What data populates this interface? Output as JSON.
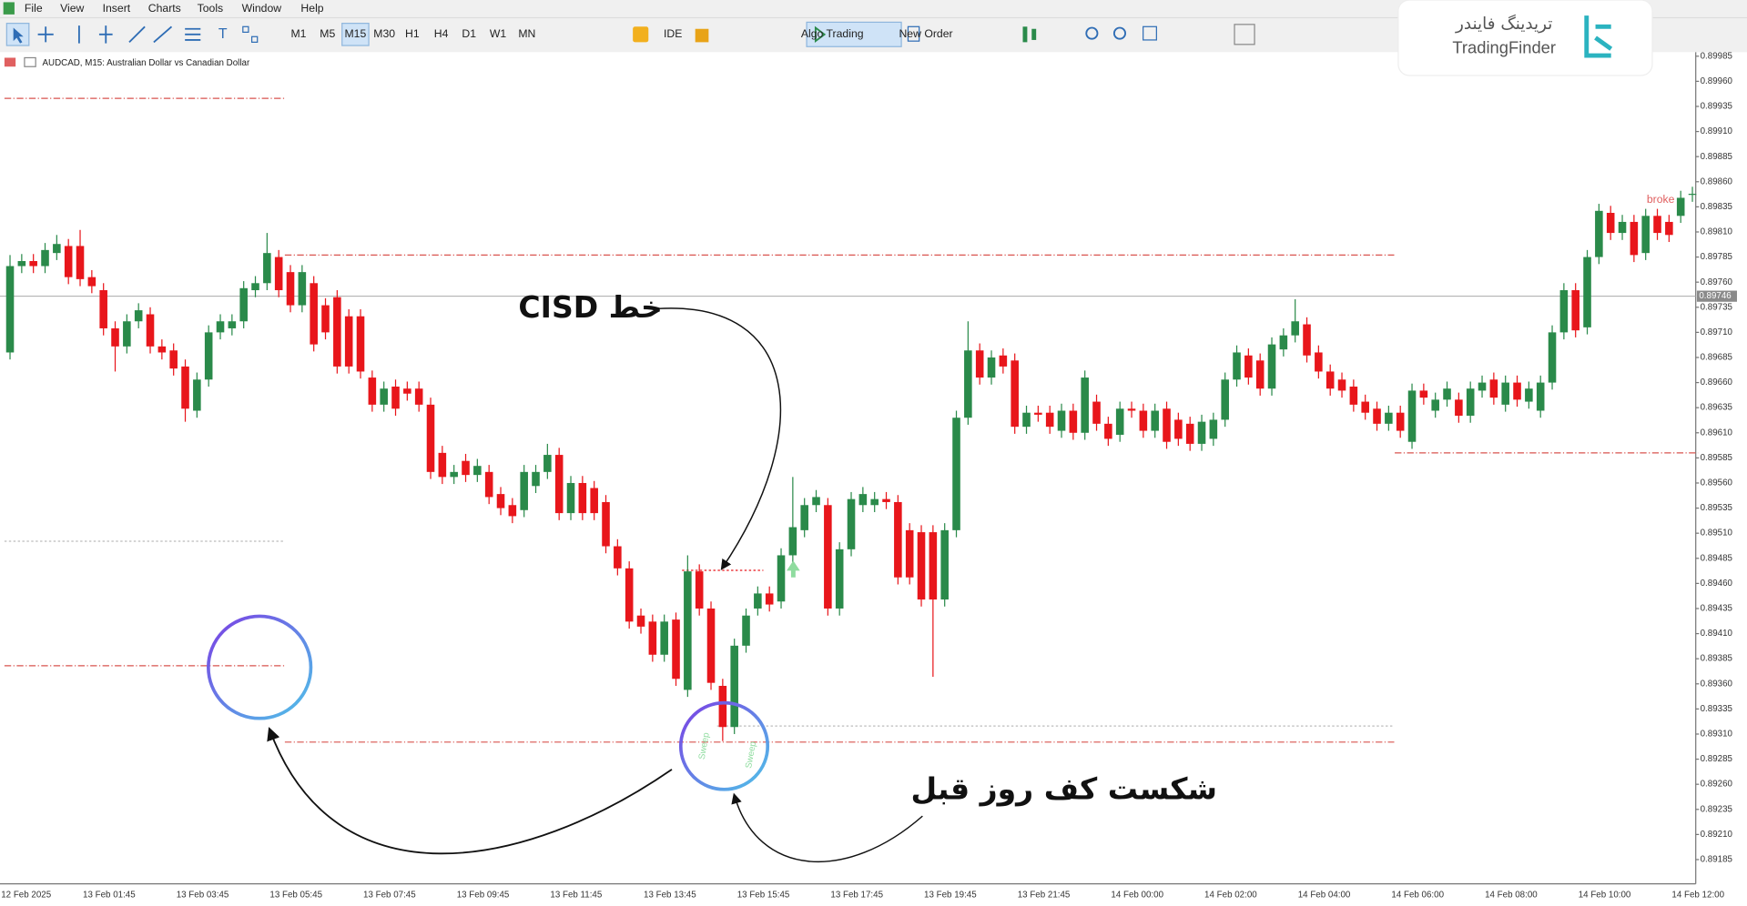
{
  "ui": {
    "menu": [
      "File",
      "View",
      "Insert",
      "Charts",
      "Tools",
      "Window",
      "Help"
    ],
    "timeframes": [
      "M1",
      "M5",
      "M15",
      "M30",
      "H1",
      "H4",
      "D1",
      "W1",
      "MN"
    ],
    "buttons": [
      "IDE",
      "Algo Trading",
      "New Order"
    ],
    "chart_header": "AUDCAD, M15:  Australian Dollar vs Canadian Dollar",
    "logo_fa": "تریدینگ فایندر",
    "logo_en": "TradingFinder"
  },
  "chart_data": {
    "type": "candlestick",
    "up_color": "#2a8a4a",
    "down_color": "#e8161b",
    "categories": [
      "12 Feb 2025",
      null,
      null,
      null,
      null,
      null,
      null,
      "13 Feb 01:45",
      null,
      null,
      null,
      null,
      null,
      null,
      null,
      "13 Feb 03:45",
      null,
      null,
      null,
      null,
      null,
      null,
      null,
      "13 Feb 05:45",
      null,
      null,
      null,
      null,
      null,
      null,
      null,
      "13 Feb 07:45",
      null,
      null,
      null,
      null,
      null,
      null,
      null,
      "13 Feb 09:45",
      null,
      null,
      null,
      null,
      null,
      null,
      null,
      "13 Feb 11:45",
      null,
      null,
      null,
      null,
      null,
      null,
      null,
      "13 Feb 13:45",
      null,
      null,
      null,
      null,
      null,
      null,
      null,
      "13 Feb 15:45",
      null,
      null,
      null,
      null,
      null,
      null,
      null,
      "13 Feb 17:45",
      null,
      null,
      null,
      null,
      null,
      null,
      null,
      "13 Feb 19:45",
      null,
      null,
      null,
      null,
      null,
      null,
      null,
      "13 Feb 21:45",
      null,
      null,
      null,
      null,
      null,
      null,
      null,
      "14 Feb 00:00",
      null,
      null,
      null,
      null,
      null,
      null,
      null,
      "14 Feb 02:00",
      null,
      null,
      null,
      null,
      null,
      null,
      null,
      "14 Feb 04:00",
      null,
      null,
      null,
      null,
      null,
      null,
      null,
      "14 Feb 06:00",
      null,
      null,
      null,
      null,
      null,
      null,
      null,
      "14 Feb 08:00",
      null,
      null,
      null,
      null,
      null,
      null,
      null,
      "14 Feb 10:00",
      null,
      null,
      null,
      null,
      null,
      null,
      null,
      "14 Feb 12:00",
      null
    ],
    "open": [
      0.8969,
      0.89776,
      0.89781,
      0.89776,
      0.89789,
      0.89796,
      0.89796,
      0.89765,
      0.89752,
      0.89714,
      0.89696,
      0.89721,
      0.89728,
      0.89696,
      0.89692,
      0.89676,
      0.89632,
      0.89663,
      0.8971,
      0.89714,
      0.89721,
      0.89752,
      0.89759,
      0.89785,
      0.8977,
      0.89737,
      0.89759,
      0.89737,
      0.89745,
      0.89726,
      0.89726,
      0.89665,
      0.89638,
      0.89656,
      0.89654,
      0.89654,
      0.89638,
      0.8959,
      0.89566,
      0.89582,
      0.89568,
      0.89571,
      0.89549,
      0.89538,
      0.89533,
      0.89557,
      0.89571,
      0.89588,
      0.8953,
      0.8956,
      0.89555,
      0.89541,
      0.89497,
      0.89475,
      0.89428,
      0.89422,
      0.89389,
      0.89424,
      0.89354,
      0.89472,
      0.89435,
      0.89358,
      0.89317,
      0.89398,
      0.89435,
      0.8945,
      0.89442,
      0.89488,
      0.89513,
      0.89538,
      0.89538,
      0.89435,
      0.89494,
      0.89538,
      0.89538,
      0.89544,
      0.89541,
      0.89513,
      0.89511,
      0.89511,
      0.89444,
      0.89513,
      0.89625,
      0.89692,
      0.89665,
      0.89687,
      0.89682,
      0.89616,
      0.8963,
      0.8963,
      0.89612,
      0.89632,
      0.8961,
      0.89641,
      0.89619,
      0.89608,
      0.89634,
      0.89632,
      0.89612,
      0.89634,
      0.89623,
      0.89619,
      0.89599,
      0.89604,
      0.89623,
      0.89663,
      0.89687,
      0.89682,
      0.89654,
      0.89693,
      0.89707,
      0.89718,
      0.8969,
      0.89671,
      0.89663,
      0.89656,
      0.89641,
      0.89634,
      0.89619,
      0.8963,
      0.89601,
      0.89652,
      0.89632,
      0.89643,
      0.89643,
      0.89627,
      0.89652,
      0.89663,
      0.89638,
      0.8966,
      0.89641,
      0.89632,
      0.8966,
      0.8971,
      0.89752,
      0.89715,
      0.89785,
      0.89829,
      0.89809,
      0.8982,
      0.89789,
      0.89826,
      0.8982,
      0.89826,
      0.89847
    ],
    "high": [
      0.89787,
      0.89788,
      0.89788,
      0.89799,
      0.89807,
      0.89803,
      0.89812,
      0.89772,
      0.89759,
      0.89721,
      0.89728,
      0.89739,
      0.89735,
      0.89703,
      0.89699,
      0.89683,
      0.8967,
      0.89717,
      0.89728,
      0.89728,
      0.89761,
      0.89766,
      0.89809,
      0.89792,
      0.89777,
      0.89777,
      0.89766,
      0.89744,
      0.89752,
      0.89733,
      0.89733,
      0.89672,
      0.89661,
      0.89663,
      0.89661,
      0.89661,
      0.89645,
      0.89597,
      0.89578,
      0.89589,
      0.89584,
      0.89578,
      0.89556,
      0.89545,
      0.89578,
      0.89578,
      0.89599,
      0.89595,
      0.89567,
      0.89567,
      0.89562,
      0.89548,
      0.89504,
      0.89482,
      0.89435,
      0.89429,
      0.89429,
      0.89431,
      0.89488,
      0.89479,
      0.89442,
      0.89365,
      0.89405,
      0.89435,
      0.89457,
      0.89457,
      0.89495,
      0.89566,
      0.89545,
      0.89553,
      0.89545,
      0.89501,
      0.89551,
      0.89556,
      0.89551,
      0.89551,
      0.89548,
      0.8952,
      0.89518,
      0.89518,
      0.8952,
      0.89632,
      0.89721,
      0.89699,
      0.89692,
      0.89694,
      0.89689,
      0.89637,
      0.89637,
      0.89637,
      0.89639,
      0.89639,
      0.89672,
      0.89648,
      0.89626,
      0.89641,
      0.89641,
      0.89639,
      0.89639,
      0.89641,
      0.8963,
      0.89626,
      0.89628,
      0.8963,
      0.8967,
      0.89697,
      0.89694,
      0.89689,
      0.89705,
      0.89714,
      0.89743,
      0.89725,
      0.89697,
      0.89678,
      0.8967,
      0.89663,
      0.89648,
      0.89641,
      0.89637,
      0.89637,
      0.89659,
      0.89659,
      0.8965,
      0.89661,
      0.8965,
      0.89661,
      0.89667,
      0.8967,
      0.89667,
      0.89667,
      0.89661,
      0.89667,
      0.89717,
      0.89759,
      0.89759,
      0.89792,
      0.89838,
      0.89836,
      0.89827,
      0.89827,
      0.89833,
      0.89833,
      0.89827,
      0.89851,
      0.89855
    ],
    "low": [
      0.89683,
      0.89769,
      0.89769,
      0.89769,
      0.89782,
      0.89758,
      0.89756,
      0.89749,
      0.89707,
      0.89671,
      0.89689,
      0.89714,
      0.89689,
      0.89683,
      0.89667,
      0.89621,
      0.89625,
      0.89656,
      0.89703,
      0.89707,
      0.89714,
      0.89745,
      0.89752,
      0.89745,
      0.8973,
      0.8973,
      0.89691,
      0.89703,
      0.89669,
      0.89669,
      0.89664,
      0.89631,
      0.89631,
      0.89627,
      0.89642,
      0.89631,
      0.89564,
      0.89559,
      0.89559,
      0.89561,
      0.89561,
      0.89539,
      0.89528,
      0.8952,
      0.89526,
      0.8955,
      0.89564,
      0.89523,
      0.89523,
      0.89523,
      0.89523,
      0.8949,
      0.89468,
      0.89415,
      0.8941,
      0.89382,
      0.89382,
      0.89358,
      0.89347,
      0.89428,
      0.89354,
      0.89303,
      0.8931,
      0.89391,
      0.89428,
      0.89432,
      0.89435,
      0.89481,
      0.89506,
      0.89531,
      0.89428,
      0.89428,
      0.89487,
      0.89531,
      0.89531,
      0.89534,
      0.89459,
      0.89459,
      0.89437,
      0.89367,
      0.89437,
      0.89506,
      0.89618,
      0.89658,
      0.89658,
      0.89669,
      0.89609,
      0.89609,
      0.89621,
      0.89609,
      0.89605,
      0.89603,
      0.89603,
      0.89612,
      0.89597,
      0.89601,
      0.89625,
      0.89605,
      0.89605,
      0.89594,
      0.89597,
      0.89592,
      0.89592,
      0.89597,
      0.89616,
      0.89656,
      0.89658,
      0.89647,
      0.89647,
      0.89686,
      0.897,
      0.8968,
      0.89664,
      0.89647,
      0.89645,
      0.89631,
      0.89623,
      0.89612,
      0.89612,
      0.89605,
      0.89594,
      0.89638,
      0.89625,
      0.89636,
      0.8962,
      0.8962,
      0.89645,
      0.89638,
      0.89631,
      0.89636,
      0.89634,
      0.89625,
      0.89653,
      0.89703,
      0.89705,
      0.89708,
      0.89778,
      0.89802,
      0.89802,
      0.8978,
      0.89782,
      0.89802,
      0.898,
      0.89819,
      0.8984
    ],
    "close": [
      0.89776,
      0.89781,
      0.89776,
      0.89792,
      0.89798,
      0.89765,
      0.89763,
      0.89756,
      0.89714,
      0.89696,
      0.89721,
      0.89732,
      0.89696,
      0.8969,
      0.89674,
      0.89634,
      0.89663,
      0.8971,
      0.89721,
      0.89721,
      0.89754,
      0.89759,
      0.89789,
      0.89752,
      0.89737,
      0.8977,
      0.89698,
      0.8971,
      0.89676,
      0.89676,
      0.89671,
      0.89638,
      0.89654,
      0.89634,
      0.89649,
      0.89638,
      0.89571,
      0.89566,
      0.89571,
      0.89568,
      0.89577,
      0.89546,
      0.89535,
      0.89527,
      0.89571,
      0.89571,
      0.89588,
      0.8953,
      0.8956,
      0.8953,
      0.8953,
      0.89497,
      0.89475,
      0.89422,
      0.89417,
      0.89389,
      0.89422,
      0.89365,
      0.89472,
      0.89435,
      0.89361,
      0.89317,
      0.89398,
      0.89428,
      0.8945,
      0.89439,
      0.89488,
      0.89516,
      0.89538,
      0.89546,
      0.89435,
      0.89494,
      0.89544,
      0.89549,
      0.89544,
      0.89541,
      0.89466,
      0.89466,
      0.89444,
      0.89444,
      0.89513,
      0.89625,
      0.89692,
      0.89665,
      0.89685,
      0.89676,
      0.89616,
      0.8963,
      0.89628,
      0.89616,
      0.89632,
      0.8961,
      0.89665,
      0.89619,
      0.89604,
      0.89634,
      0.89632,
      0.89612,
      0.89632,
      0.89601,
      0.89604,
      0.89599,
      0.89621,
      0.89623,
      0.89663,
      0.8969,
      0.89665,
      0.89654,
      0.89698,
      0.89707,
      0.89721,
      0.89687,
      0.89671,
      0.89654,
      0.89652,
      0.89638,
      0.8963,
      0.89619,
      0.8963,
      0.89612,
      0.89652,
      0.89645,
      0.89643,
      0.89654,
      0.89627,
      0.89654,
      0.8966,
      0.89645,
      0.8966,
      0.89643,
      0.89654,
      0.8966,
      0.8971,
      0.89752,
      0.89712,
      0.89785,
      0.89831,
      0.89809,
      0.8982,
      0.89787,
      0.89826,
      0.89809,
      0.89807,
      0.89844,
      0.89848
    ],
    "ylim": [
      0.89162,
      0.89989
    ],
    "yticks": [
      0.89985,
      {
        "value": 0.8996,
        "label": "0.89960"
      },
      0.89935,
      {
        "value": 0.8991,
        "label": "0.89910"
      },
      0.89885,
      {
        "value": 0.8986,
        "label": "0.89860"
      },
      0.89835,
      {
        "value": 0.8981,
        "label": "0.89810"
      },
      0.89785,
      {
        "value": 0.8976,
        "label": "0.89760"
      },
      0.89735,
      {
        "value": 0.8971,
        "label": "0.89710"
      },
      0.89685,
      {
        "value": 0.8966,
        "label": "0.89660"
      },
      0.89635,
      {
        "value": 0.8961,
        "label": "0.89610"
      },
      0.89585,
      {
        "value": 0.8956,
        "label": "0.89560"
      },
      0.89535,
      {
        "value": 0.8951,
        "label": "0.89510"
      },
      0.89485,
      {
        "value": 0.8946,
        "label": "0.89460"
      },
      0.89435,
      {
        "value": 0.8941,
        "label": "0.89410"
      },
      0.89385,
      {
        "value": 0.8936,
        "label": "0.89360"
      },
      0.89335,
      {
        "value": 0.8931,
        "label": "0.89310"
      },
      0.89285,
      {
        "value": 0.8926,
        "label": "0.89260"
      },
      0.89235,
      {
        "value": 0.8921,
        "label": "0.89210"
      },
      0.89185
    ],
    "bid": 0.89746,
    "levels": [
      {
        "value": 0.89943,
        "start": 0,
        "end": 23,
        "color": "#d9534f",
        "style": "dashdot"
      },
      {
        "value": 0.89787,
        "start": 24,
        "end": 118,
        "color": "#d9534f",
        "style": "dashdot"
      },
      {
        "value": 0.8959,
        "start": 119,
        "end": 144,
        "color": "#d9534f",
        "style": "dashdot"
      },
      {
        "value": 0.89378,
        "start": 0,
        "end": 23,
        "color": "#d9534f",
        "style": "dashdot"
      },
      {
        "value": 0.89302,
        "start": 24,
        "end": 118,
        "color": "#d9534f",
        "style": "dashdot"
      },
      {
        "value": 0.89502,
        "start": 0,
        "end": 23,
        "color": "#bbbbbb",
        "style": "dot"
      },
      {
        "value": 0.89318,
        "start": 61,
        "end": 118,
        "color": "#bbbbbb",
        "style": "dot"
      },
      {
        "value": 0.89473,
        "start": 58,
        "end": 64,
        "color": "#e8161b",
        "style": "dot"
      }
    ],
    "annotations": [
      "خط CISD",
      "شکست کف روز قبل",
      "broke",
      "Sweep",
      "Sweep"
    ]
  }
}
